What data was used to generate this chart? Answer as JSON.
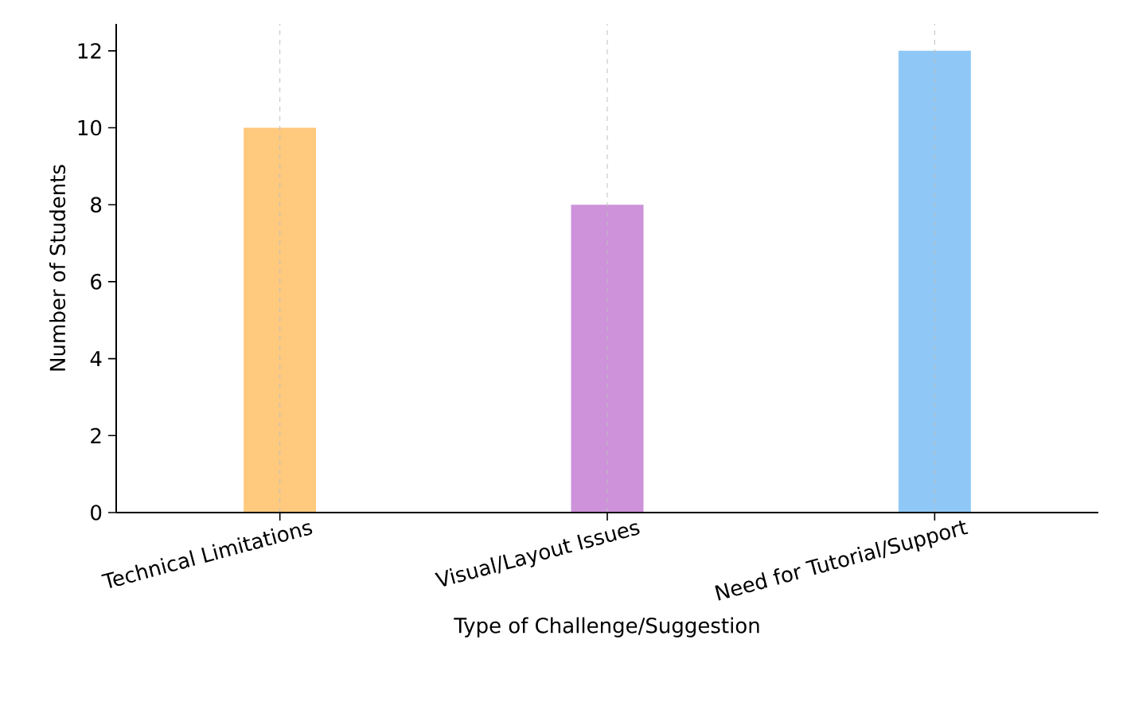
{
  "chart_data": {
    "type": "bar",
    "xlabel": "Type of Challenge/Suggestion",
    "ylabel": "Number of Students",
    "categories": [
      "Technical Limitations",
      "Visual/Layout Issues",
      "Need for Tutorial/Support"
    ],
    "values": [
      10,
      8,
      12
    ],
    "colors": [
      "#ffc97e",
      "#cd92da",
      "#8fc8f6"
    ],
    "ylim": [
      0,
      12.7
    ],
    "yticks": [
      0,
      2,
      4,
      6,
      8,
      10,
      12
    ],
    "grid": "x"
  }
}
